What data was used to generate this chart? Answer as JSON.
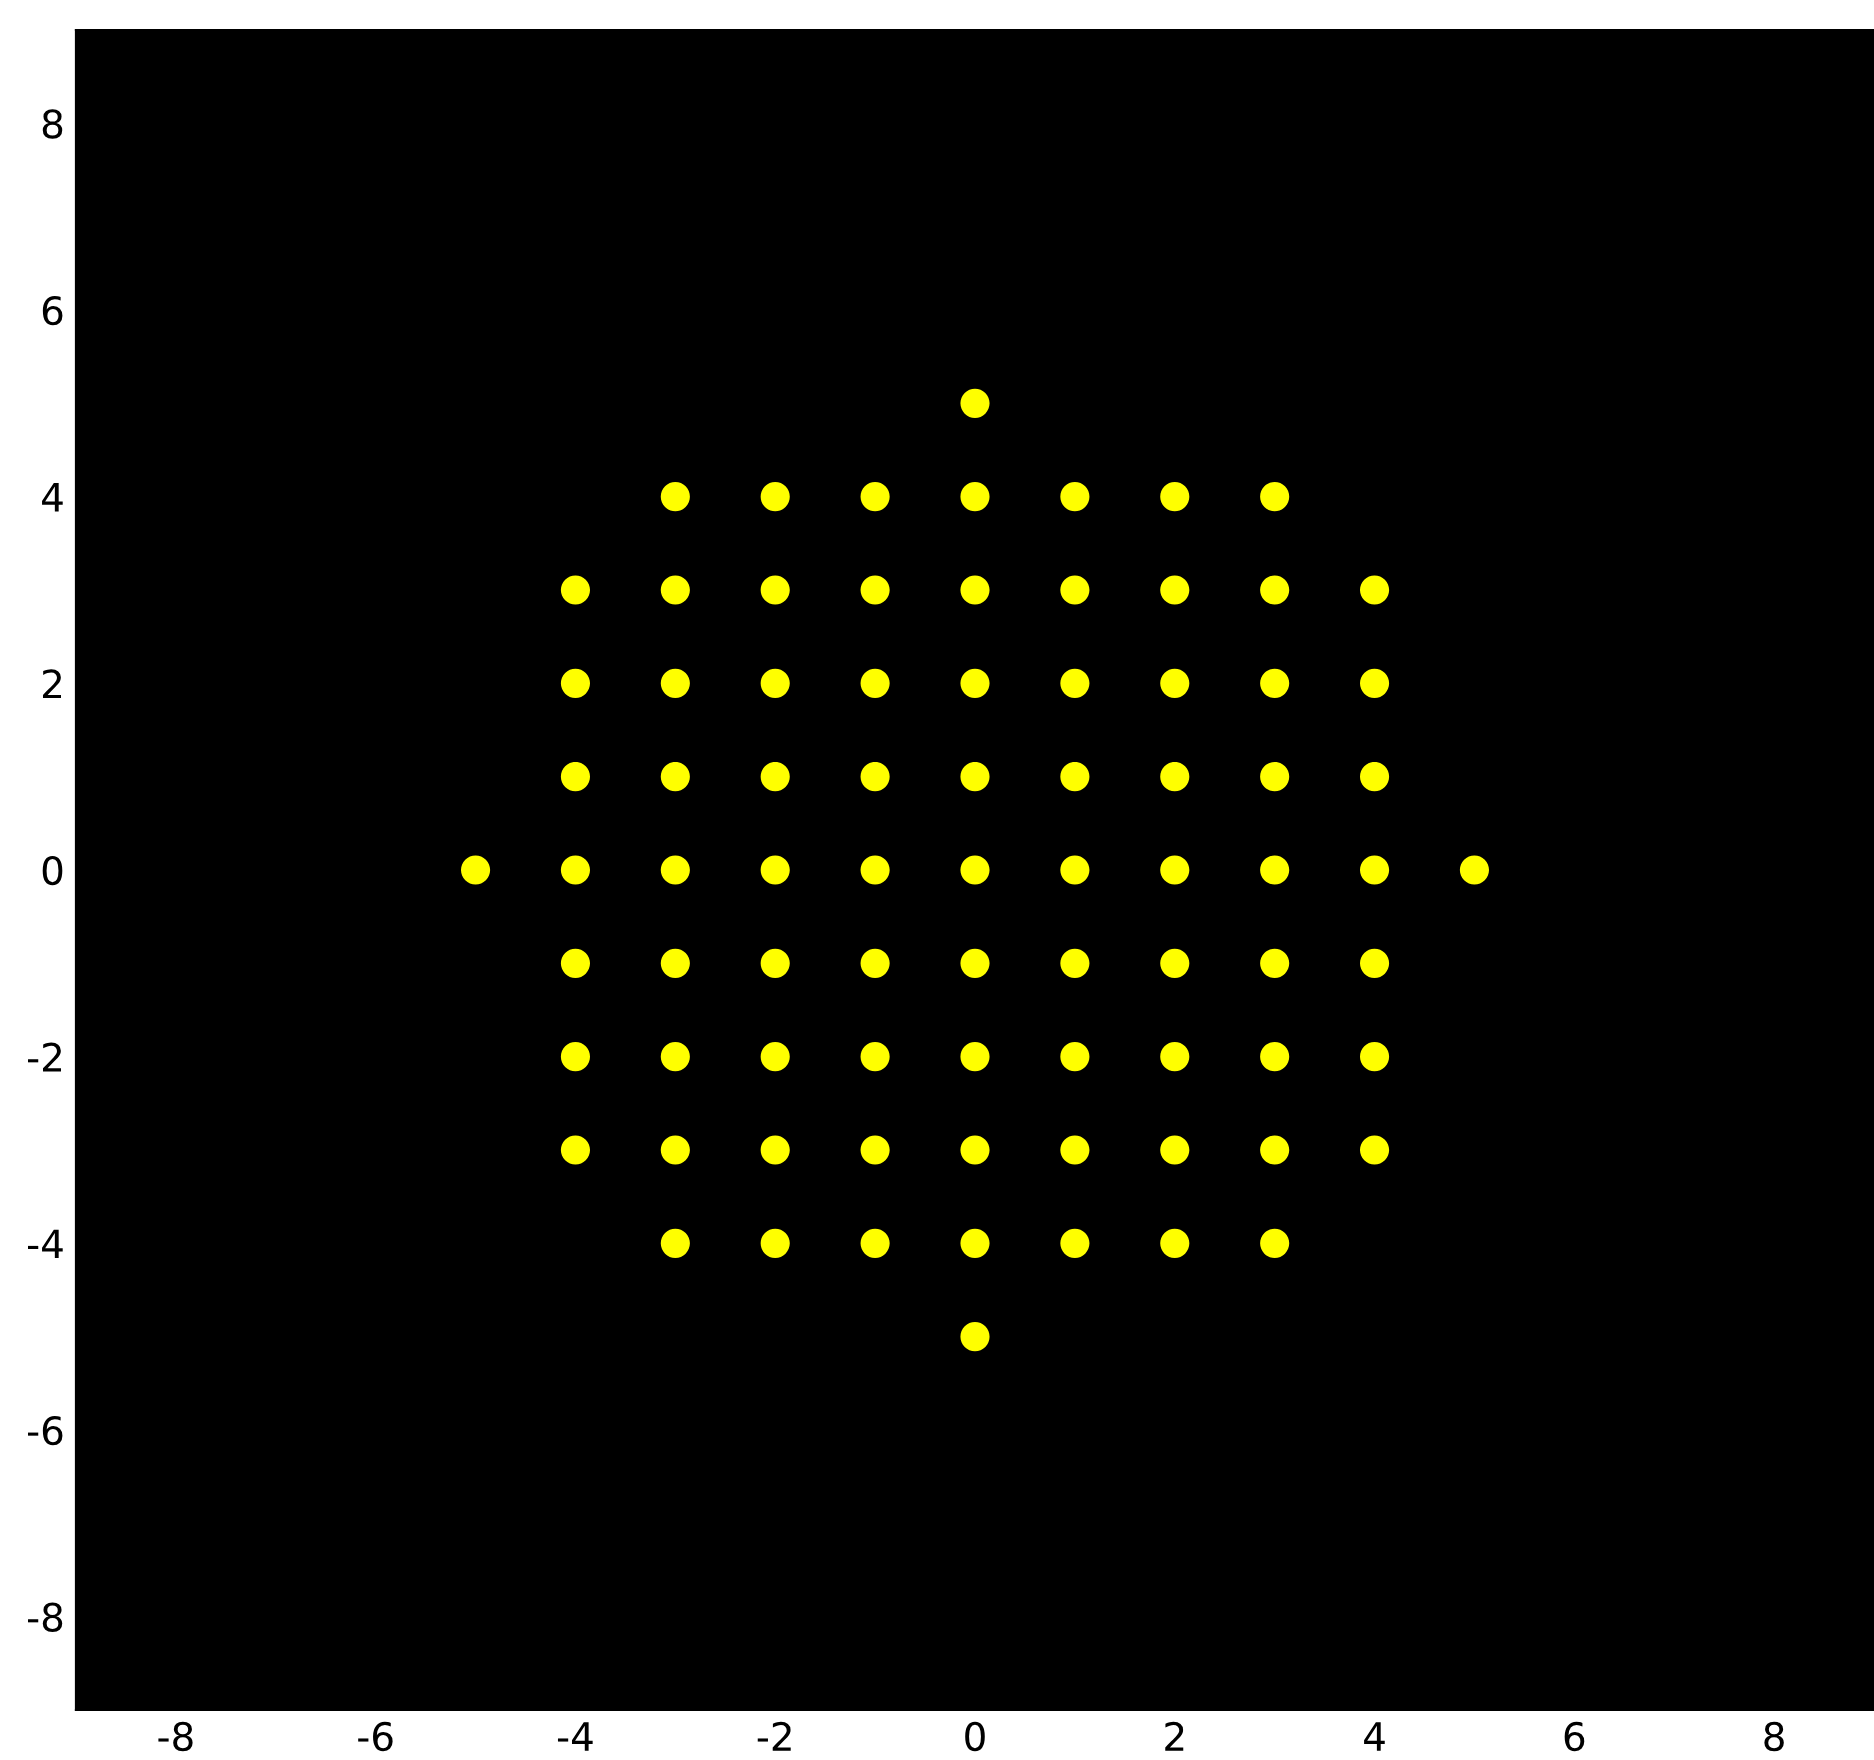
{
  "chart_data": {
    "type": "scatter",
    "x": [
      0,
      -3,
      -2,
      -1,
      0,
      1,
      2,
      3,
      -4,
      -3,
      -2,
      -1,
      0,
      1,
      2,
      3,
      4,
      -4,
      -3,
      -2,
      -1,
      0,
      1,
      2,
      3,
      4,
      -4,
      -3,
      -2,
      -1,
      0,
      1,
      2,
      3,
      4,
      -5,
      -4,
      -3,
      -2,
      -1,
      0,
      1,
      2,
      3,
      4,
      5,
      -4,
      -3,
      -2,
      -1,
      0,
      1,
      2,
      3,
      4,
      -4,
      -3,
      -2,
      -1,
      0,
      1,
      2,
      3,
      4,
      -4,
      -3,
      -2,
      -1,
      0,
      1,
      2,
      3,
      4,
      -3,
      -2,
      -1,
      0,
      1,
      2,
      3,
      0
    ],
    "values": [
      5,
      4,
      4,
      4,
      4,
      4,
      4,
      4,
      3,
      3,
      3,
      3,
      3,
      3,
      3,
      3,
      3,
      2,
      2,
      2,
      2,
      2,
      2,
      2,
      2,
      2,
      1,
      1,
      1,
      1,
      1,
      1,
      1,
      1,
      1,
      0,
      0,
      0,
      0,
      0,
      0,
      0,
      0,
      0,
      0,
      0,
      -1,
      -1,
      -1,
      -1,
      -1,
      -1,
      -1,
      -1,
      -1,
      -2,
      -2,
      -2,
      -2,
      -2,
      -2,
      -2,
      -2,
      -2,
      -3,
      -3,
      -3,
      -3,
      -3,
      -3,
      -3,
      -3,
      -3,
      -4,
      -4,
      -4,
      -4,
      -4,
      -4,
      -4,
      -5
    ],
    "color": "#ffff00",
    "marker": "circle",
    "xlim": [
      -9,
      9
    ],
    "ylim": [
      -9,
      9
    ],
    "xticks": [
      -8,
      -6,
      -4,
      -2,
      0,
      2,
      4,
      6,
      8
    ],
    "yticks": [
      -8,
      -6,
      -4,
      -2,
      0,
      2,
      4,
      6,
      8
    ],
    "grid": false,
    "legend": false
  }
}
